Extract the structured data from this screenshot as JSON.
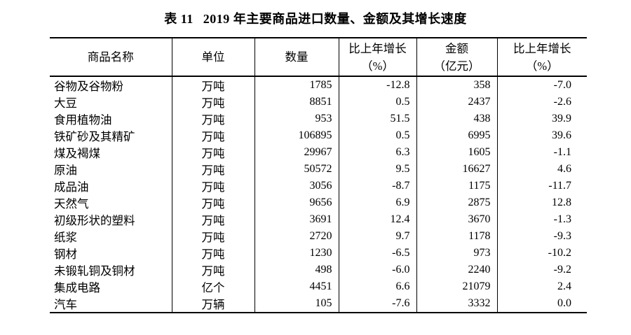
{
  "page": {
    "title_prefix": "表 11",
    "title_main": "2019 年主要商品进口数量、金额及其增长速度"
  },
  "table": {
    "headers": {
      "commodity": "商品名称",
      "unit": "单位",
      "quantity": "数量",
      "quantity_growth_line1": "比上年增长",
      "quantity_growth_line2": "（%）",
      "value_line1": "金额",
      "value_line2": "（亿元）",
      "value_growth_line1": "比上年增长",
      "value_growth_line2": "（%）"
    },
    "rows": [
      {
        "name": "谷物及谷物粉",
        "unit": "万吨",
        "quantity": "1785",
        "qty_growth": "-12.8",
        "value": "358",
        "value_growth": "-7.0"
      },
      {
        "name": "大豆",
        "unit": "万吨",
        "quantity": "8851",
        "qty_growth": "0.5",
        "value": "2437",
        "value_growth": "-2.6"
      },
      {
        "name": "食用植物油",
        "unit": "万吨",
        "quantity": "953",
        "qty_growth": "51.5",
        "value": "438",
        "value_growth": "39.9"
      },
      {
        "name": "铁矿砂及其精矿",
        "unit": "万吨",
        "quantity": "106895",
        "qty_growth": "0.5",
        "value": "6995",
        "value_growth": "39.6"
      },
      {
        "name": "煤及褐煤",
        "unit": "万吨",
        "quantity": "29967",
        "qty_growth": "6.3",
        "value": "1605",
        "value_growth": "-1.1"
      },
      {
        "name": "原油",
        "unit": "万吨",
        "quantity": "50572",
        "qty_growth": "9.5",
        "value": "16627",
        "value_growth": "4.6"
      },
      {
        "name": "成品油",
        "unit": "万吨",
        "quantity": "3056",
        "qty_growth": "-8.7",
        "value": "1175",
        "value_growth": "-11.7"
      },
      {
        "name": "天然气",
        "unit": "万吨",
        "quantity": "9656",
        "qty_growth": "6.9",
        "value": "2875",
        "value_growth": "12.8"
      },
      {
        "name": "初级形状的塑料",
        "unit": "万吨",
        "quantity": "3691",
        "qty_growth": "12.4",
        "value": "3670",
        "value_growth": "-1.3"
      },
      {
        "name": "纸浆",
        "unit": "万吨",
        "quantity": "2720",
        "qty_growth": "9.7",
        "value": "1178",
        "value_growth": "-9.3"
      },
      {
        "name": "钢材",
        "unit": "万吨",
        "quantity": "1230",
        "qty_growth": "-6.5",
        "value": "973",
        "value_growth": "-10.2"
      },
      {
        "name": "未锻轧铜及铜材",
        "unit": "万吨",
        "quantity": "498",
        "qty_growth": "-6.0",
        "value": "2240",
        "value_growth": "-9.2"
      },
      {
        "name": "集成电路",
        "unit": "亿个",
        "quantity": "4451",
        "qty_growth": "6.6",
        "value": "21079",
        "value_growth": "2.4"
      },
      {
        "name": "汽车",
        "unit": "万辆",
        "quantity": "105",
        "qty_growth": "-7.6",
        "value": "3332",
        "value_growth": "0.0"
      }
    ]
  },
  "colors": {
    "text": "#000000",
    "background": "#ffffff",
    "border": "#000000"
  }
}
